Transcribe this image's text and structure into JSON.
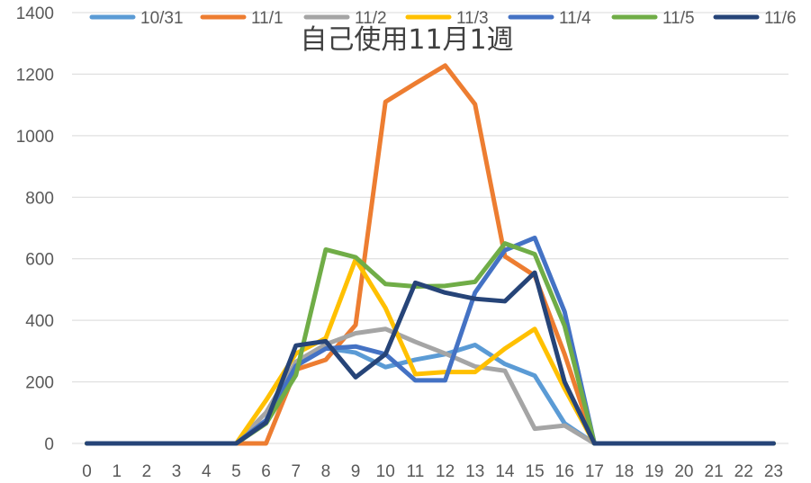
{
  "chart_data": {
    "type": "line",
    "title": "自己使用11月1週",
    "xlabel": "",
    "ylabel": "",
    "x": [
      0,
      1,
      2,
      3,
      4,
      5,
      6,
      7,
      8,
      9,
      10,
      11,
      12,
      13,
      14,
      15,
      16,
      17,
      18,
      19,
      20,
      21,
      22,
      23
    ],
    "x_tick_labels": [
      "0",
      "1",
      "2",
      "3",
      "4",
      "5",
      "6",
      "7",
      "8",
      "9",
      "10",
      "11",
      "12",
      "13",
      "14",
      "15",
      "16",
      "17",
      "18",
      "19",
      "20",
      "21",
      "22",
      "23"
    ],
    "ylim": [
      0,
      1400
    ],
    "y_ticks": [
      0,
      200,
      400,
      600,
      800,
      1000,
      1200,
      1400
    ],
    "y_tick_labels": [
      "0",
      "200",
      "400",
      "600",
      "800",
      "1000",
      "1200",
      "1400"
    ],
    "grid": true,
    "legend_position": "top",
    "series": [
      {
        "name": "10/31",
        "color": "#5B9BD5",
        "values": [
          0,
          0,
          0,
          0,
          0,
          0,
          75,
          265,
          310,
          295,
          248,
          272,
          290,
          320,
          258,
          220,
          65,
          0,
          0,
          0,
          0,
          0,
          0,
          0
        ]
      },
      {
        "name": "11/1",
        "color": "#ED7D31",
        "values": [
          0,
          0,
          0,
          0,
          0,
          0,
          0,
          240,
          272,
          385,
          1110,
          1170,
          1228,
          1102,
          608,
          545,
          290,
          0,
          0,
          0,
          0,
          0,
          0,
          0
        ]
      },
      {
        "name": "11/2",
        "color": "#A5A5A5",
        "values": [
          0,
          0,
          0,
          0,
          0,
          0,
          100,
          265,
          322,
          358,
          372,
          330,
          292,
          250,
          236,
          48,
          58,
          0,
          0,
          0,
          0,
          0,
          0,
          0
        ]
      },
      {
        "name": "11/3",
        "color": "#FFC000",
        "values": [
          0,
          0,
          0,
          0,
          0,
          0,
          140,
          292,
          342,
          598,
          440,
          225,
          232,
          232,
          308,
          372,
          178,
          0,
          0,
          0,
          0,
          0,
          0,
          0
        ]
      },
      {
        "name": "11/4",
        "color": "#4472C4",
        "values": [
          0,
          0,
          0,
          0,
          0,
          0,
          75,
          252,
          308,
          315,
          290,
          205,
          205,
          490,
          628,
          668,
          428,
          0,
          0,
          0,
          0,
          0,
          0,
          0
        ]
      },
      {
        "name": "11/5",
        "color": "#70AD47",
        "values": [
          0,
          0,
          0,
          0,
          0,
          0,
          65,
          222,
          630,
          605,
          518,
          510,
          512,
          525,
          650,
          615,
          382,
          0,
          0,
          0,
          0,
          0,
          0,
          0
        ]
      },
      {
        "name": "11/6",
        "color": "#264478",
        "values": [
          0,
          0,
          0,
          0,
          0,
          0,
          68,
          318,
          332,
          215,
          290,
          522,
          490,
          470,
          462,
          555,
          200,
          0,
          0,
          0,
          0,
          0,
          0,
          0
        ]
      }
    ]
  }
}
